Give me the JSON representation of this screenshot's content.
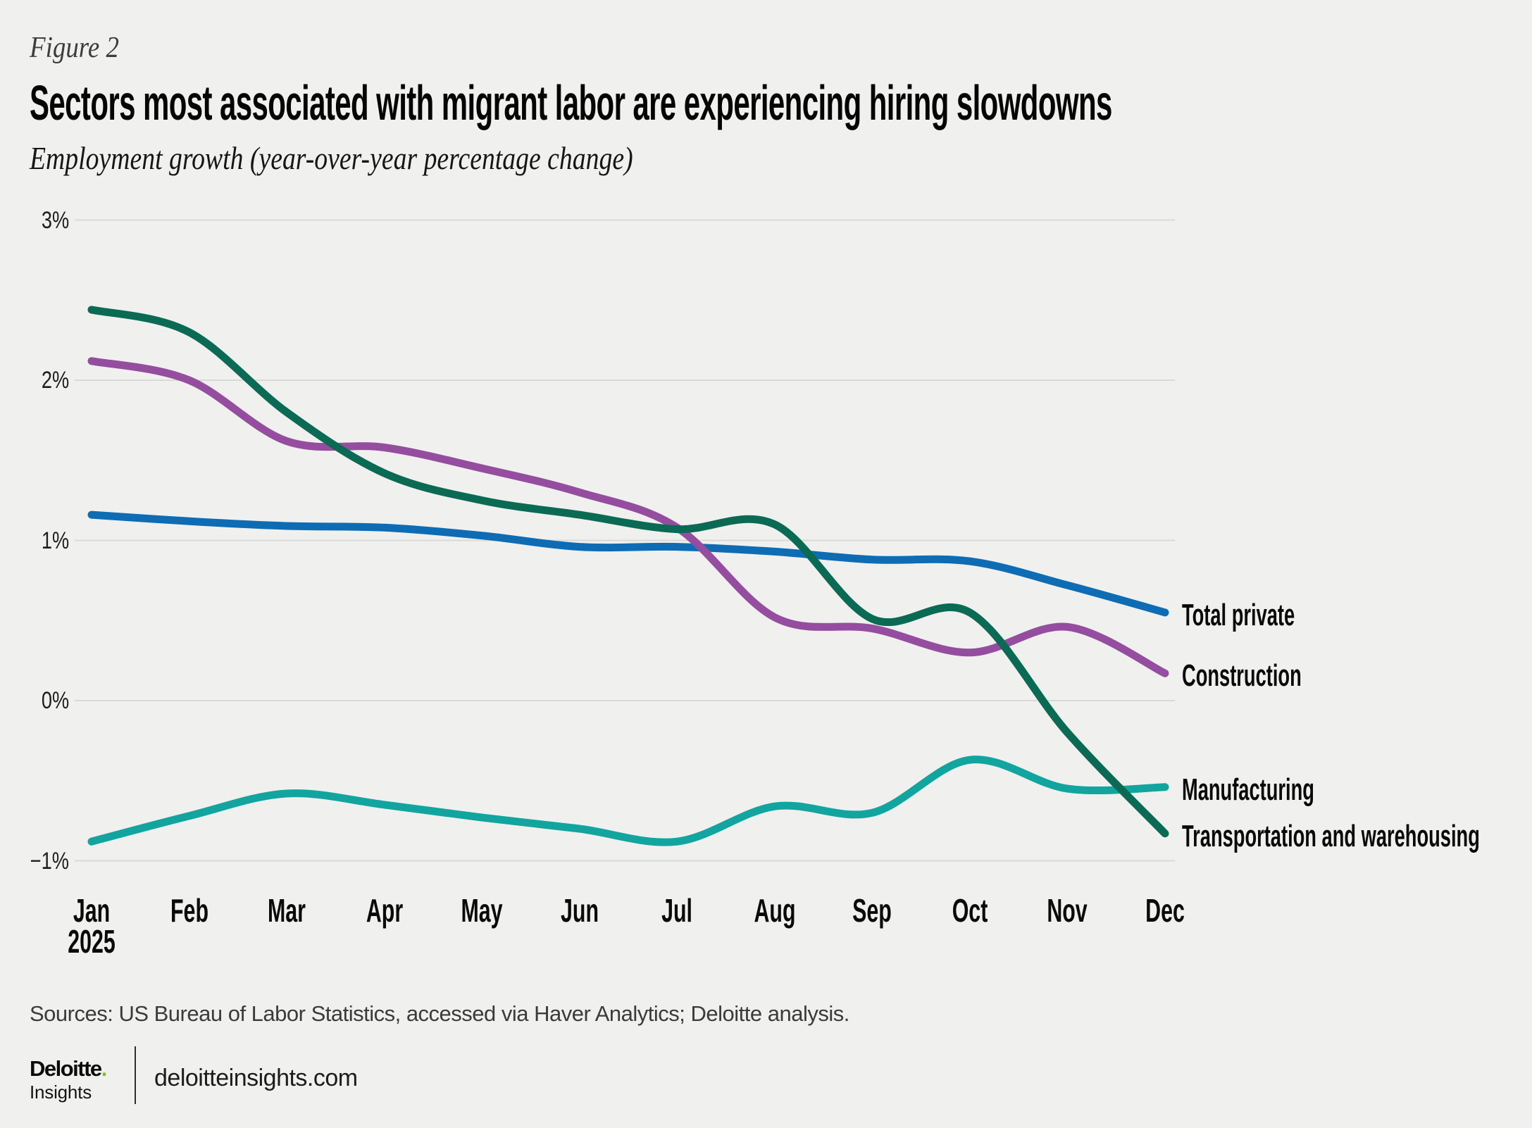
{
  "figure_label": "Figure 2",
  "title": "Sectors most associated with migrant labor are experiencing hiring slowdowns",
  "subtitle": "Employment growth (year-over-year percentage change)",
  "source_note": "Sources: US Bureau of Labor Statistics, accessed via Haver Analytics; Deloitte analysis.",
  "footer": {
    "logo_primary": "Deloitte",
    "logo_dot": ".",
    "logo_dot_color": "#86BC25",
    "logo_secondary": "Insights",
    "site": "deloitteinsights.com"
  },
  "colors": {
    "background": "#f0f1ef",
    "gridline": "#d8dad8",
    "total_private": "#0D6CB4",
    "construction": "#954E9F",
    "manufacturing": "#12A5A0",
    "transportation": "#0B6A54"
  },
  "chart_data": {
    "type": "line",
    "title": "Sectors most associated with migrant labor are experiencing hiring slowdowns",
    "subtitle": "Employment growth (year-over-year percentage change)",
    "x": [
      "Jan",
      "Feb",
      "Mar",
      "Apr",
      "May",
      "Jun",
      "Jul",
      "Aug",
      "Sep",
      "Oct",
      "Nov",
      "Dec"
    ],
    "x_sublabel": {
      "index": 0,
      "text": "2025"
    },
    "y_ticks": [
      {
        "label": "3%",
        "value": 3
      },
      {
        "label": "2%",
        "value": 2
      },
      {
        "label": "1%",
        "value": 1
      },
      {
        "label": "0%",
        "value": 0
      },
      {
        "label": "−1%",
        "value": -1
      }
    ],
    "ylim": [
      -1.1,
      3.3
    ],
    "grid": true,
    "legend_position": "right-of-line-end",
    "series": [
      {
        "name": "Total private",
        "color": "#0D6CB4",
        "values": [
          1.16,
          1.12,
          1.09,
          1.08,
          1.03,
          0.96,
          0.96,
          0.93,
          0.88,
          0.87,
          0.72,
          0.55
        ]
      },
      {
        "name": "Construction",
        "color": "#954E9F",
        "values": [
          2.12,
          2.0,
          1.62,
          1.58,
          1.45,
          1.3,
          1.08,
          0.52,
          0.45,
          0.3,
          0.46,
          0.17
        ]
      },
      {
        "name": "Manufacturing",
        "color": "#12A5A0",
        "values": [
          -0.88,
          -0.72,
          -0.58,
          -0.65,
          -0.73,
          -0.8,
          -0.88,
          -0.66,
          -0.7,
          -0.37,
          -0.55,
          -0.54
        ]
      },
      {
        "name": "Transportation and warehousing",
        "color": "#0B6A54",
        "values": [
          2.44,
          2.3,
          1.8,
          1.42,
          1.25,
          1.16,
          1.07,
          1.1,
          0.51,
          0.55,
          -0.2,
          -0.83
        ]
      }
    ]
  }
}
